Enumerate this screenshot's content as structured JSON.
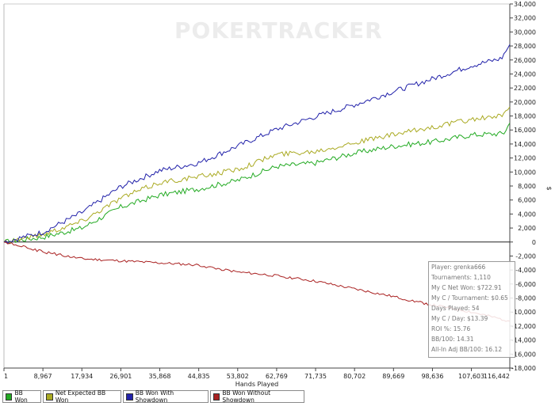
{
  "chart_data": {
    "type": "line",
    "watermark": "POKERTRACKER",
    "xlabel": "Hands Played",
    "ylabel": "$",
    "xlim": [
      1,
      116442
    ],
    "ylim": [
      -18000,
      34000
    ],
    "x_ticks": [
      1,
      8967,
      17934,
      26901,
      35868,
      44835,
      53802,
      62769,
      71735,
      80702,
      89669,
      98636,
      107603,
      116442
    ],
    "x_tick_labels": [
      "1",
      "8,967",
      "17,934",
      "26,901",
      "35,868",
      "44,835",
      "53,802",
      "62,769",
      "71,735",
      "80,702",
      "89,669",
      "98,636",
      "107,603",
      "116,442"
    ],
    "y_ticks": [
      -18000,
      -16000,
      -14000,
      -12000,
      -10000,
      -8000,
      -6000,
      -4000,
      -2000,
      0,
      2000,
      4000,
      6000,
      8000,
      10000,
      12000,
      14000,
      16000,
      18000,
      20000,
      22000,
      24000,
      26000,
      28000,
      30000,
      32000,
      34000
    ],
    "y_tick_labels": [
      "-18,000",
      "-16,000",
      "-14,000",
      "-12,000",
      "-10,000",
      "-8,000",
      "-6,000",
      "-4,000",
      "-2,000",
      "0",
      "2,000",
      "4,000",
      "6,000",
      "8,000",
      "10,000",
      "12,000",
      "14,000",
      "16,000",
      "18,000",
      "20,000",
      "22,000",
      "24,000",
      "26,000",
      "28,000",
      "30,000",
      "32,000",
      "34,000"
    ],
    "grid": false,
    "legend_position": "bottom-left",
    "series": [
      {
        "name": "BB Won",
        "color": "#22aa22",
        "x": [
          1,
          8967,
          17934,
          26901,
          35868,
          44835,
          53802,
          62769,
          71735,
          80702,
          89669,
          98636,
          107603,
          115000,
          116442
        ],
        "values": [
          0,
          700,
          2000,
          5000,
          6700,
          7600,
          8800,
          10800,
          11300,
          12700,
          13700,
          14300,
          15300,
          15500,
          17000
        ]
      },
      {
        "name": "Net Expected BB Won",
        "color": "#aaaa22",
        "x": [
          1,
          8967,
          17934,
          26901,
          35868,
          44835,
          53802,
          62769,
          71735,
          80702,
          89669,
          98636,
          107603,
          115000,
          116442
        ],
        "values": [
          0,
          1100,
          3000,
          6300,
          8500,
          9300,
          10400,
          12500,
          13000,
          14200,
          15300,
          16400,
          17500,
          18000,
          19300
        ]
      },
      {
        "name": "BB Won With Showdown",
        "color": "#2222aa",
        "x": [
          1,
          8967,
          17934,
          26901,
          35868,
          44835,
          53802,
          62769,
          71735,
          80702,
          89669,
          98636,
          107603,
          114500,
          116442
        ],
        "values": [
          0,
          1400,
          4200,
          7900,
          10200,
          11300,
          13700,
          16100,
          17900,
          19600,
          21500,
          23300,
          25200,
          26200,
          28200
        ]
      },
      {
        "name": "BB Won Without Showdown",
        "color": "#aa2222",
        "x": [
          1,
          8967,
          17934,
          26901,
          35868,
          44835,
          53802,
          62769,
          71735,
          80702,
          89669,
          98636,
          107603,
          116442
        ],
        "values": [
          0,
          -1400,
          -2400,
          -2700,
          -3000,
          -3300,
          -4300,
          -4800,
          -5600,
          -6700,
          -7800,
          -9000,
          -10000,
          -11300
        ]
      }
    ]
  },
  "stats_box": {
    "player": "Player: grenka666",
    "tournaments": "Tournaments: 1,110",
    "net_won": "My C Net Won: $722.91",
    "per_tournament": "My C / Tournament: $0.65",
    "days_played": "Days Played: 54",
    "per_day": "My C / Day: $13.39",
    "roi": "ROI %: 15.76",
    "bb100": "BB/100: 14.31",
    "allin_bb100": "All-In Adj BB/100: 16.12"
  },
  "legend": {
    "items": [
      {
        "label": "BB Won",
        "color": "#22aa22"
      },
      {
        "label": "Net Expected BB Won",
        "color": "#aaaa22"
      },
      {
        "label": "BB Won With Showdown",
        "color": "#2222aa"
      },
      {
        "label": "BB Won Without Showdown",
        "color": "#aa2222"
      }
    ]
  }
}
